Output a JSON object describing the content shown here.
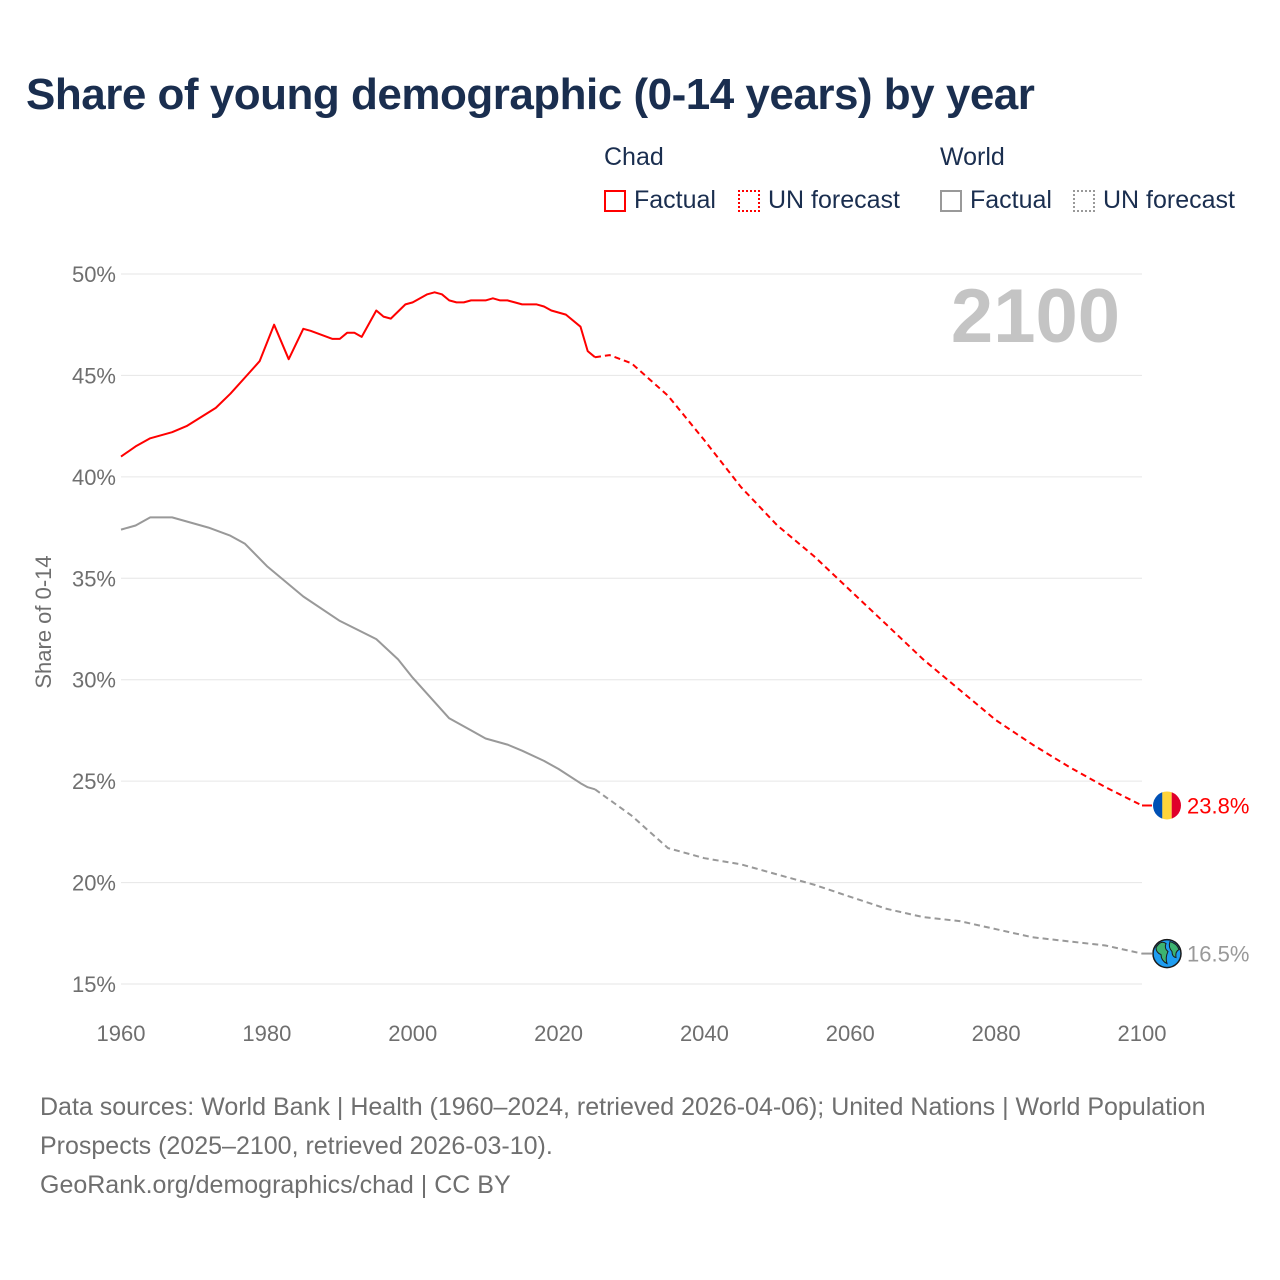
{
  "title": "Share of young demographic (0-14 years) by year",
  "legend": {
    "groups": [
      {
        "name": "Chad",
        "items": [
          "Factual",
          "UN forecast"
        ],
        "color": "#ff0000"
      },
      {
        "name": "World",
        "items": [
          "Factual",
          "UN forecast"
        ],
        "color": "#999999"
      }
    ]
  },
  "year_watermark": "2100",
  "footer": {
    "line1": "Data sources: World Bank | Health (1960–2024, retrieved 2026-04-06); United Nations | World Population Prospects (2025–2100, retrieved 2026-03-10).",
    "line2": "GeoRank.org/demographics/chad | CC BY"
  },
  "chart_data": {
    "type": "line",
    "title": "Share of young demographic (0-14 years) by year",
    "xlabel": "",
    "ylabel": "Share of 0-14",
    "xlim": [
      1960,
      2100
    ],
    "ylim": [
      15,
      50
    ],
    "x_ticks": [
      "1960",
      "1980",
      "2000",
      "2020",
      "2040",
      "2060",
      "2080",
      "2100"
    ],
    "y_ticks": [
      "15%",
      "20%",
      "25%",
      "30%",
      "35%",
      "40%",
      "45%",
      "50%"
    ],
    "grid": true,
    "legend_position": "top-right",
    "series": [
      {
        "name": "Chad Factual",
        "color": "#ff0000",
        "dash": false,
        "x": [
          1960,
          1962,
          1964,
          1967,
          1969,
          1971,
          1973,
          1975,
          1977,
          1979,
          1981,
          1983,
          1985,
          1986,
          1989,
          1990,
          1991,
          1992,
          1993,
          1995,
          1996,
          1997,
          1999,
          2000,
          2002,
          2003,
          2004,
          2005,
          2006,
          2007,
          2008,
          2010,
          2011,
          2012,
          2013,
          2014,
          2015,
          2017,
          2018,
          2019,
          2021,
          2023,
          2024,
          2025
        ],
        "y": [
          41.0,
          41.5,
          41.9,
          42.2,
          42.5,
          42.95,
          43.4,
          44.1,
          44.9,
          45.7,
          47.5,
          45.8,
          47.3,
          47.2,
          46.8,
          46.8,
          47.1,
          47.1,
          46.9,
          48.2,
          47.9,
          47.8,
          48.5,
          48.6,
          49.0,
          49.1,
          49.0,
          48.7,
          48.6,
          48.6,
          48.7,
          48.7,
          48.8,
          48.7,
          48.7,
          48.6,
          48.5,
          48.5,
          48.4,
          48.2,
          48.0,
          47.4,
          46.2,
          45.9
        ]
      },
      {
        "name": "Chad UN forecast",
        "color": "#ff0000",
        "dash": true,
        "x": [
          2025,
          2027,
          2030,
          2035,
          2040,
          2045,
          2050,
          2055,
          2060,
          2065,
          2070,
          2075,
          2080,
          2085,
          2090,
          2095,
          2100
        ],
        "y": [
          45.9,
          46.0,
          45.6,
          44.0,
          41.8,
          39.5,
          37.6,
          36.1,
          34.4,
          32.7,
          31.0,
          29.5,
          28.0,
          26.8,
          25.7,
          24.7,
          23.8
        ]
      },
      {
        "name": "World Factual",
        "color": "#999999",
        "dash": false,
        "x": [
          1960,
          1962,
          1964,
          1967,
          1970,
          1972,
          1975,
          1977,
          1980,
          1985,
          1990,
          1995,
          1998,
          2000,
          2005,
          2008,
          2010,
          2013,
          2015,
          2018,
          2020,
          2023,
          2024,
          2025
        ],
        "y": [
          37.4,
          37.6,
          38.0,
          38.0,
          37.7,
          37.5,
          37.1,
          36.7,
          35.6,
          34.1,
          32.9,
          32.0,
          31.0,
          30.1,
          28.1,
          27.5,
          27.1,
          26.8,
          26.5,
          26.0,
          25.6,
          24.9,
          24.7,
          24.6
        ]
      },
      {
        "name": "World UN forecast",
        "color": "#999999",
        "dash": true,
        "x": [
          2025,
          2030,
          2035,
          2040,
          2045,
          2050,
          2055,
          2060,
          2065,
          2070,
          2075,
          2080,
          2085,
          2090,
          2095,
          2100
        ],
        "y": [
          24.6,
          23.3,
          21.7,
          21.2,
          20.9,
          20.4,
          19.9,
          19.3,
          18.7,
          18.3,
          18.1,
          17.7,
          17.3,
          17.1,
          16.9,
          16.5
        ]
      }
    ],
    "end_labels": [
      {
        "series": "Chad",
        "value": "23.8%",
        "color": "#ff0000",
        "icon": "chad-flag-icon"
      },
      {
        "series": "World",
        "value": "16.5%",
        "color": "#999999",
        "icon": "globe-icon"
      }
    ]
  }
}
